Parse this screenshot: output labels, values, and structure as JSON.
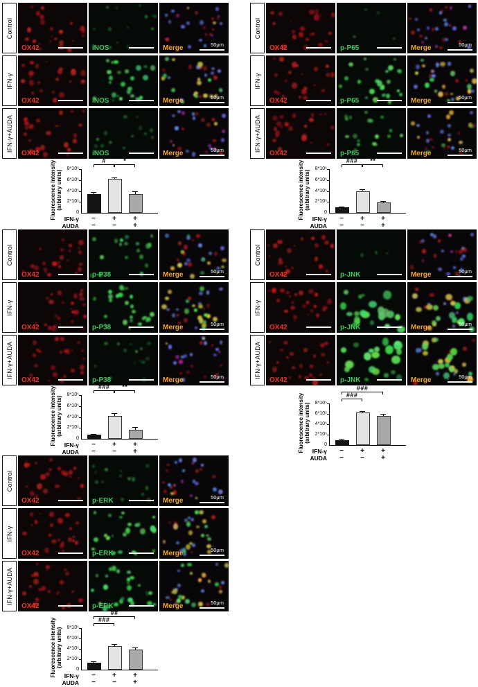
{
  "colors": {
    "ox42_red": "#e8392b",
    "marker_green": "#3ec75f",
    "merge_orange": "#f0a732",
    "scale_white": "#ffffff",
    "panel_bg_red": "#0d0606",
    "panel_bg_green": "#050a06",
    "panel_bg_merge": "#090609",
    "bar_fills": [
      "#141414",
      "#e4e4e4",
      "#a8a8a8"
    ]
  },
  "panels": [
    {
      "marker": "iNOS",
      "ox42_label": "OX42",
      "merge_label": "Merge",
      "scale_label": "50μm",
      "rows": [
        {
          "label": "Control",
          "green_level": "dim"
        },
        {
          "label": "IFN-γ",
          "green_level": "bright"
        },
        {
          "label": "IFN-γ+AUDA",
          "green_level": "dim"
        }
      ]
    },
    {
      "marker": "p-P65",
      "ox42_label": "OX42",
      "merge_label": "Merge",
      "scale_label": "50μm",
      "rows": [
        {
          "label": "Control",
          "green_level": "off"
        },
        {
          "label": "IFN-γ",
          "green_level": "bright"
        },
        {
          "label": "IFN-γ+AUDA",
          "green_level": "mid"
        }
      ]
    },
    {
      "marker": "p-P38",
      "ox42_label": "OX42",
      "merge_label": "Merge",
      "scale_label": "50μm",
      "rows": [
        {
          "label": "Control",
          "green_level": "mid"
        },
        {
          "label": "IFN-γ",
          "green_level": "bright"
        },
        {
          "label": "IFN-γ+AUDA",
          "green_level": "dim"
        }
      ]
    },
    {
      "marker": "p-JNK",
      "ox42_label": "OX42",
      "merge_label": "Merge",
      "scale_label": "50μm",
      "rows": [
        {
          "label": "Control",
          "green_level": "off"
        },
        {
          "label": "IFN-γ",
          "green_level": "bright-large"
        },
        {
          "label": "IFN-γ+AUDA",
          "green_level": "bright-large"
        }
      ]
    },
    {
      "marker": "p-ERK",
      "ox42_label": "OX42",
      "merge_label": "Merge",
      "scale_label": "50μm",
      "rows": [
        {
          "label": "Control",
          "green_level": "dim"
        },
        {
          "label": "IFN-γ",
          "green_level": "bright"
        },
        {
          "label": "IFN-γ+AUDA",
          "green_level": "bright"
        }
      ]
    }
  ],
  "chart_data": [
    {
      "type": "bar",
      "marker": "iNOS",
      "categories": [
        "Control",
        "IFN-γ",
        "IFN-γ+AUDA"
      ],
      "values": [
        340000,
        620000,
        340000
      ],
      "errors": [
        40000,
        25000,
        50000
      ],
      "ylabel": "Fluorescence Intensity",
      "ylabel2": "(arbitrary units)",
      "yticks": [
        "0",
        "2*10⁵",
        "4*10⁵",
        "6*10⁵",
        "8*10⁵"
      ],
      "ylim": [
        0,
        800000
      ],
      "grid": false,
      "significance": [
        {
          "a": 0,
          "b": 1,
          "label": "#",
          "level": 0
        },
        {
          "a": 1,
          "b": 2,
          "label": "*",
          "level": 0
        }
      ],
      "xaxis_rows": [
        {
          "name": "IFN-γ",
          "values": [
            "−",
            "+",
            "+"
          ]
        },
        {
          "name": "AUDA",
          "values": [
            "−",
            "−",
            "+"
          ]
        }
      ]
    },
    {
      "type": "bar",
      "marker": "p-P65",
      "categories": [
        "Control",
        "IFN-γ",
        "IFN-γ+AUDA"
      ],
      "values": [
        105000,
        400000,
        195000
      ],
      "errors": [
        15000,
        30000,
        20000
      ],
      "ylabel": "Fluorescence intensity",
      "ylabel2": "(arbitrary units)",
      "yticks": [
        "0",
        "2*10⁵",
        "4*10⁵",
        "6*10⁵",
        "8*10⁵"
      ],
      "ylim": [
        0,
        800000
      ],
      "grid": false,
      "significance": [
        {
          "a": 0,
          "b": 1,
          "label": "###",
          "level": 0
        },
        {
          "a": 1,
          "b": 2,
          "label": "**",
          "level": 0
        }
      ],
      "xaxis_rows": [
        {
          "name": "IFN-γ",
          "values": [
            "−",
            "+",
            "+"
          ]
        },
        {
          "name": "AUDA",
          "values": [
            "−",
            "−",
            "+"
          ]
        }
      ]
    },
    {
      "type": "bar",
      "marker": "p-P38",
      "categories": [
        "Control",
        "IFN-γ",
        "IFN-γ+AUDA"
      ],
      "values": [
        75000,
        420000,
        170000
      ],
      "errors": [
        12000,
        45000,
        45000
      ],
      "ylabel": "Fluorescence Intensity",
      "ylabel2": "(arbitrary units)",
      "yticks": [
        "0",
        "2*10⁵",
        "4*10⁵",
        "6*10⁵",
        "8*10⁵"
      ],
      "ylim": [
        0,
        800000
      ],
      "grid": false,
      "significance": [
        {
          "a": 0,
          "b": 1,
          "label": "###",
          "level": 0
        },
        {
          "a": 1,
          "b": 2,
          "label": "**",
          "level": 0
        }
      ],
      "xaxis_rows": [
        {
          "name": "IFN-γ",
          "values": [
            "−",
            "+",
            "+"
          ]
        },
        {
          "name": "AUDA",
          "values": [
            "−",
            "−",
            "+"
          ]
        }
      ]
    },
    {
      "type": "bar",
      "marker": "p-JNK",
      "categories": [
        "Control",
        "IFN-γ",
        "IFN-γ+AUDA"
      ],
      "values": [
        100000,
        630000,
        560000
      ],
      "errors": [
        25000,
        30000,
        40000
      ],
      "ylabel": "Fluorescence intensity",
      "ylabel2": "(arbitrary units)",
      "yticks": [
        "0",
        "2*10⁵",
        "4*10⁵",
        "6*10⁵",
        "8*10⁵"
      ],
      "ylim": [
        0,
        800000
      ],
      "grid": false,
      "significance": [
        {
          "a": 0,
          "b": 1,
          "label": "###",
          "level": 0
        },
        {
          "a": 0,
          "b": 2,
          "label": "###",
          "level": 1
        }
      ],
      "xaxis_rows": [
        {
          "name": "IFN-γ",
          "values": [
            "−",
            "+",
            "+"
          ]
        },
        {
          "name": "AUDA",
          "values": [
            "−",
            "−",
            "+"
          ]
        }
      ]
    },
    {
      "type": "bar",
      "marker": "p-ERK",
      "categories": [
        "Control",
        "IFN-γ",
        "IFN-γ+AUDA"
      ],
      "values": [
        140000,
        450000,
        390000
      ],
      "errors": [
        15000,
        40000,
        35000
      ],
      "ylabel": "Fluorescence intensity",
      "ylabel2": "(arbitrary units)",
      "yticks": [
        "0",
        "2*10⁵",
        "4*10⁵",
        "6*10⁵",
        "8*10⁵"
      ],
      "ylim": [
        0,
        800000
      ],
      "grid": false,
      "significance": [
        {
          "a": 0,
          "b": 1,
          "label": "###",
          "level": 0
        },
        {
          "a": 0,
          "b": 2,
          "label": "##",
          "level": 1
        }
      ],
      "xaxis_rows": [
        {
          "name": "IFN-γ",
          "values": [
            "−",
            "+",
            "+"
          ]
        },
        {
          "name": "AUDA",
          "values": [
            "−",
            "−",
            "+"
          ]
        }
      ]
    }
  ]
}
